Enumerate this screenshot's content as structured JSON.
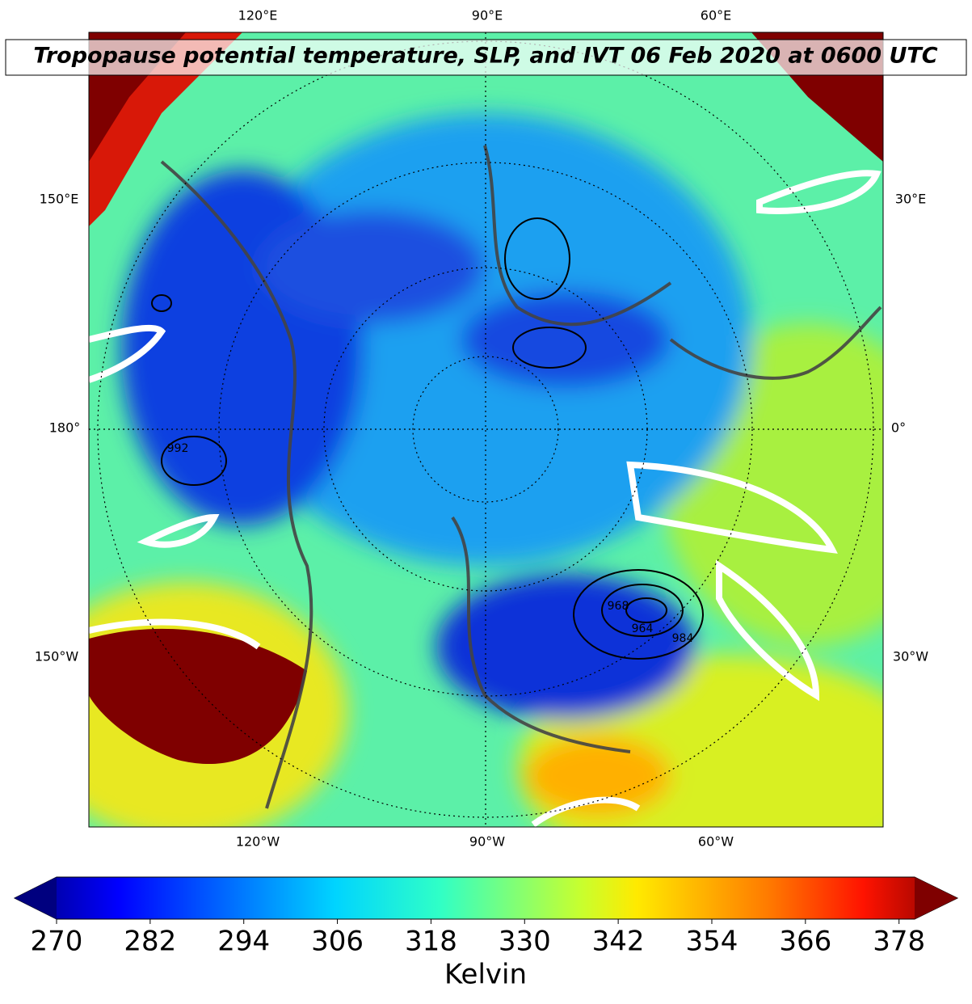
{
  "title": "Tropopause potential temperature, SLP, and IVT 06 Feb 2020 at 0600 UTC",
  "longitude_labels": {
    "top": [
      "120°E",
      "90°E",
      "60°E"
    ],
    "left": [
      "150°E",
      "180°",
      "150°W"
    ],
    "right": [
      "30°E",
      "0°",
      "30°W"
    ],
    "bottom": [
      "120°W",
      "90°W",
      "60°W"
    ]
  },
  "contour_labels": [
    "992",
    "984",
    "964",
    "968"
  ],
  "colorbar": {
    "label": "Kelvin",
    "range": [
      270,
      380
    ],
    "ticks": [
      270,
      282,
      294,
      306,
      318,
      330,
      342,
      354,
      366,
      378
    ]
  }
}
